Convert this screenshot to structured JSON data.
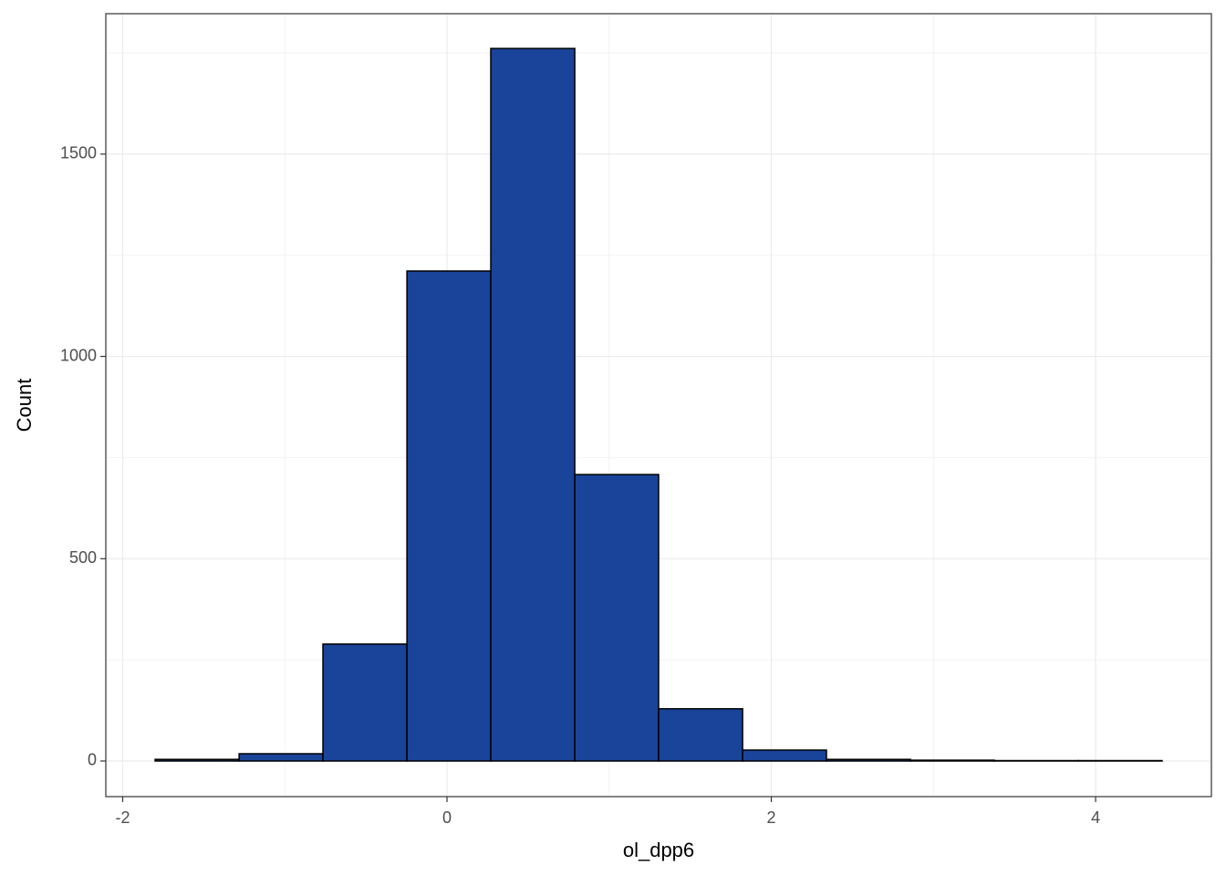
{
  "chart_data": {
    "type": "histogram",
    "x_label": "ol_dpp6",
    "y_label": "Count",
    "bins": [
      -1.8,
      -1.282,
      -0.765,
      -0.247,
      0.27,
      0.788,
      1.305,
      1.823,
      2.34,
      2.858,
      3.375,
      3.893,
      4.41
    ],
    "values": [
      4,
      18,
      289,
      1211,
      1761,
      708,
      129,
      27,
      4,
      2,
      1,
      1
    ],
    "color": "#1a4499",
    "xlim": [
      -2.104,
      4.714
    ],
    "ylim": [
      -88,
      1847
    ],
    "xticks": [
      -2,
      0,
      2,
      4
    ],
    "yticks": [
      0,
      500,
      1000,
      1500
    ],
    "grid": true
  }
}
